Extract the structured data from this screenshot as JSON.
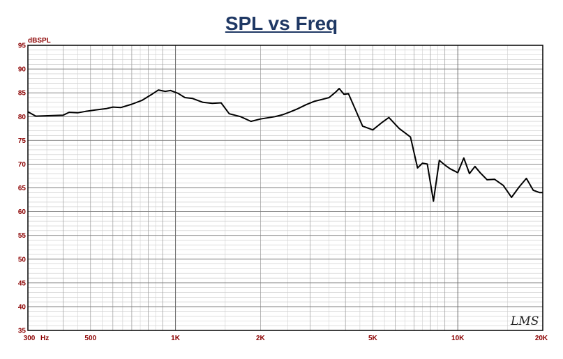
{
  "chart_data": {
    "type": "line",
    "title": "SPL vs Freq",
    "ylabel": "dBSPL",
    "xlabel": "",
    "x_scale": "log",
    "xlim": [
      300,
      20000
    ],
    "ylim": [
      35,
      95
    ],
    "grid": true,
    "y_ticks": [
      "95",
      "90",
      "85",
      "80",
      "75",
      "70",
      "65",
      "60",
      "55",
      "50",
      "45",
      "40",
      "35"
    ],
    "x_tick_labels": [
      {
        "value": 300,
        "label": "300"
      },
      {
        "value": 500,
        "label": "500"
      },
      {
        "value": 1000,
        "label": "1K"
      },
      {
        "value": 2000,
        "label": "2K"
      },
      {
        "value": 5000,
        "label": "5K"
      },
      {
        "value": 10000,
        "label": "10K"
      },
      {
        "value": 20000,
        "label": "20K"
      }
    ],
    "x_unit_label": "Hz",
    "line_color": "#000000",
    "series": [
      {
        "x": [
          300,
          320,
          360,
          400,
          420,
          450,
          480,
          520,
          570,
          600,
          640,
          700,
          760,
          820,
          870,
          920,
          960,
          1020,
          1080,
          1150,
          1250,
          1350,
          1450,
          1550,
          1700,
          1850,
          2000,
          2100,
          2250,
          2400,
          2550,
          2700,
          2900,
          3100,
          3300,
          3500,
          3700,
          3800,
          3950,
          4100,
          4300,
          4600,
          5000,
          5400,
          5700,
          6200,
          6800,
          7200,
          7500,
          7800,
          8200,
          8600,
          9000,
          9400,
          10000,
          10500,
          11000,
          11500,
          12000,
          12700,
          13500,
          14500,
          15500,
          16500,
          17500,
          18500,
          19500,
          20000
        ],
        "y": [
          81,
          80.1,
          80.2,
          80.3,
          80.9,
          80.8,
          81.1,
          81.4,
          81.7,
          82.0,
          81.9,
          82.6,
          83.4,
          84.6,
          85.6,
          85.3,
          85.5,
          84.9,
          84.0,
          83.8,
          83.0,
          82.8,
          82.9,
          80.6,
          80.0,
          79.0,
          79.5,
          79.7,
          80.0,
          80.4,
          81.0,
          81.6,
          82.5,
          83.2,
          83.6,
          84.0,
          85.2,
          85.9,
          84.7,
          84.8,
          82.0,
          78.0,
          77.2,
          78.8,
          79.8,
          77.5,
          75.7,
          69.2,
          70.2,
          70.0,
          62.2,
          70.8,
          69.8,
          69.0,
          68.2,
          71.3,
          68.0,
          69.5,
          68.2,
          66.7,
          66.8,
          65.5,
          63.0,
          65.2,
          67.0,
          64.5,
          64.0,
          64.0
        ]
      }
    ]
  },
  "watermark": "LMS"
}
